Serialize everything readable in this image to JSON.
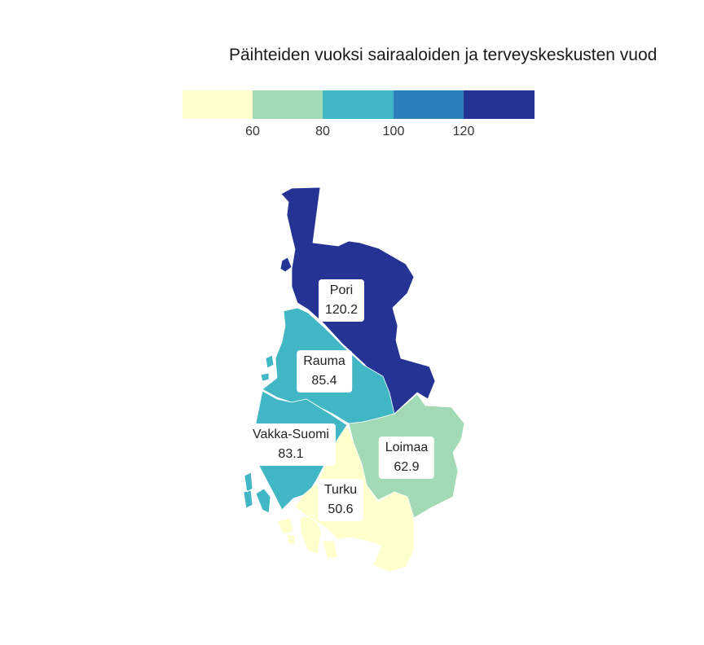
{
  "title": "Päihteiden vuoksi sairaaloiden ja terveyskeskusten vuod",
  "legend": {
    "colors": [
      "#ffffcc",
      "#a1dab4",
      "#41b6c4",
      "#2c7fb8",
      "#253494"
    ],
    "ticks": [
      "60",
      "80",
      "100",
      "120"
    ]
  },
  "regions": [
    {
      "name": "Pori",
      "value": "120.2",
      "color": "#253494"
    },
    {
      "name": "Rauma",
      "value": "85.4",
      "color": "#41b6c4"
    },
    {
      "name": "Vakka-Suomi",
      "value": "83.1",
      "color": "#41b6c4"
    },
    {
      "name": "Loimaa",
      "value": "62.9",
      "color": "#a1dab4"
    },
    {
      "name": "Turku",
      "value": "50.6",
      "color": "#ffffcc"
    }
  ]
}
